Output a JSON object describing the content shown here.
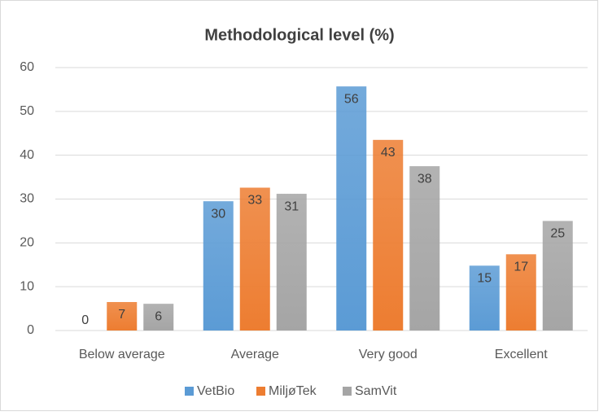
{
  "chart_data": {
    "type": "bar",
    "title": "Methodological level (%)",
    "categories": [
      "Below average",
      "Average",
      "Very good",
      "Excellent"
    ],
    "series": [
      {
        "name": "VetBio",
        "color": "#5b9bd5",
        "values": [
          0,
          29.5,
          55.7,
          14.8
        ],
        "value_labels": [
          "0",
          "30",
          "56",
          "15"
        ]
      },
      {
        "name": "MiljøTek",
        "color": "#ed7d31",
        "values": [
          6.5,
          32.6,
          43.5,
          17.4
        ],
        "value_labels": [
          "7",
          "33",
          "43",
          "17"
        ]
      },
      {
        "name": "SamVit",
        "color": "#a5a5a5",
        "values": [
          6.1,
          31.2,
          37.5,
          25
        ],
        "value_labels": [
          "6",
          "31",
          "38",
          "25"
        ]
      }
    ],
    "ylim": [
      0,
      60
    ],
    "yticks": [
      0,
      10,
      20,
      30,
      40,
      50,
      60
    ],
    "grid": true,
    "legend": "bottom"
  }
}
